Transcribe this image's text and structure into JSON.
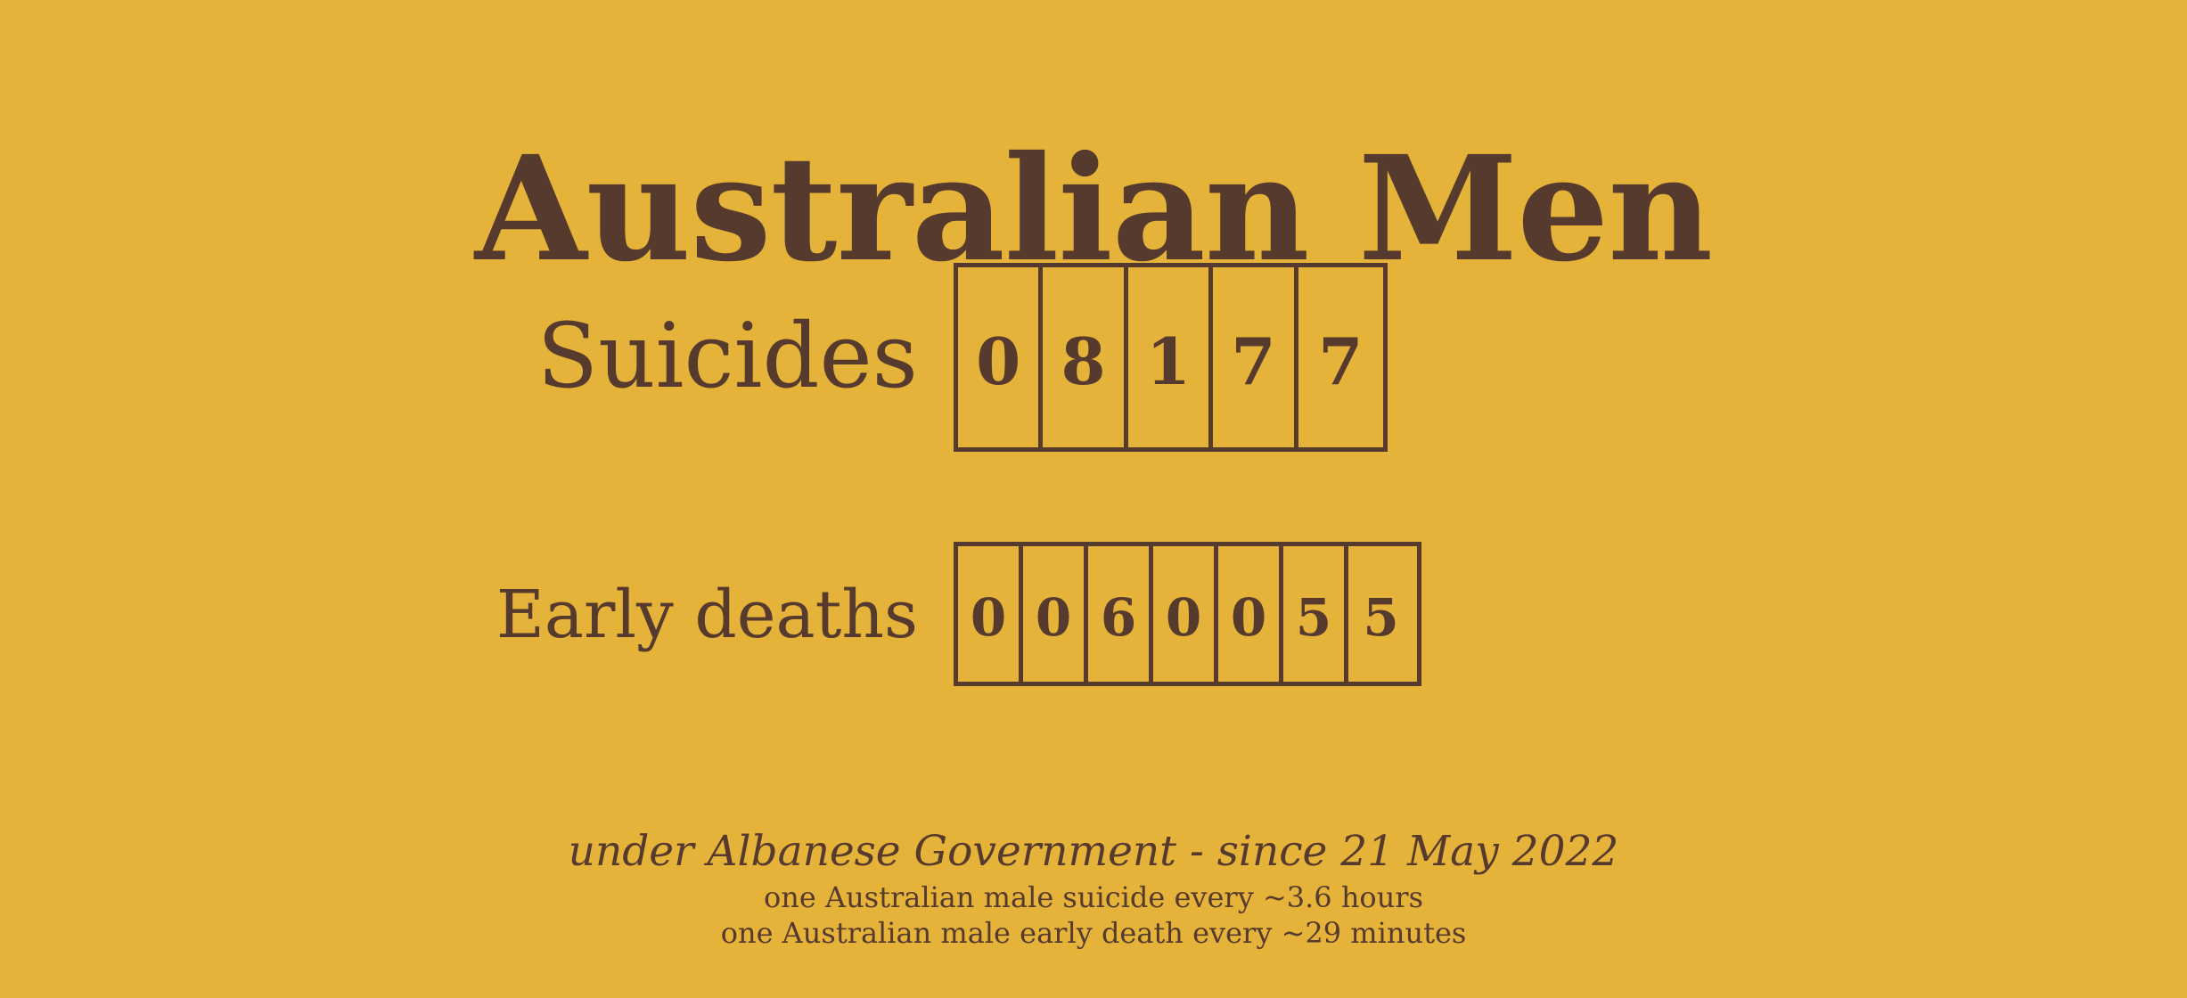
{
  "header": {
    "title": "Australian Men"
  },
  "counters": {
    "suicides": {
      "label": "Suicides",
      "value": "08177",
      "digits": [
        "0",
        "8",
        "1",
        "7",
        "7"
      ]
    },
    "early_deaths": {
      "label": "Early deaths",
      "value": "0060055",
      "digits": [
        "0",
        "0",
        "6",
        "0",
        "0",
        "5",
        "5"
      ]
    }
  },
  "footer": {
    "lead": "under Albanese Government - since 21 May 2022",
    "notes": [
      "one Australian male suicide every ~3.6 hours",
      "one Australian male early death every ~29 minutes"
    ]
  },
  "colors": {
    "background": "#E5B33A",
    "text": "#553A2D",
    "border": "#553A2D"
  }
}
